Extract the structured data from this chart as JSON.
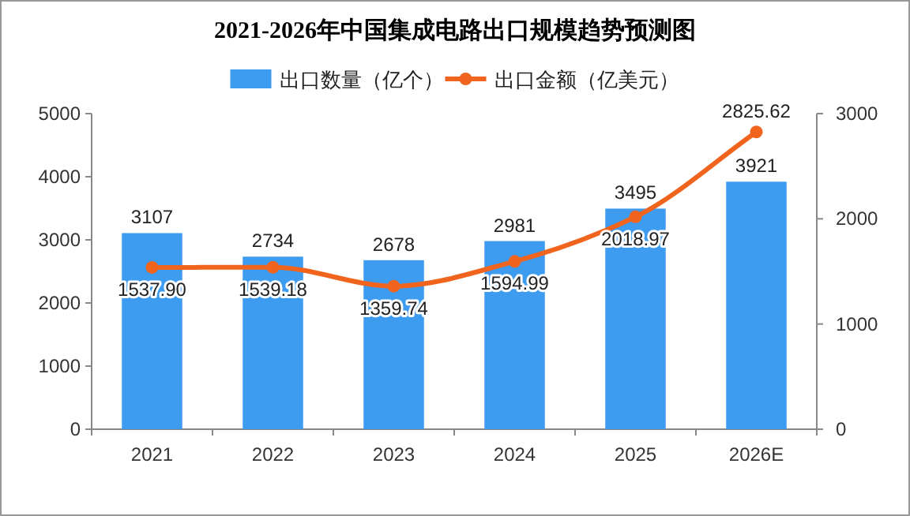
{
  "chart_data": {
    "type": "bar",
    "title": "2021-2026年中国集成电路出口规模趋势预测图",
    "categories": [
      "2021",
      "2022",
      "2023",
      "2024",
      "2025",
      "2026E"
    ],
    "series": [
      {
        "name": "出口数量（亿个）",
        "color": "#3d9cf0",
        "values": [
          3107,
          2734,
          2678,
          2981,
          3495,
          3921
        ],
        "value_labels": [
          "3107",
          "2734",
          "2678",
          "2981",
          "3495",
          "3921"
        ]
      },
      {
        "name": "出口金额（亿美元）",
        "type": "line",
        "axis": "y2",
        "marker": "circle",
        "color": "#f0641e",
        "values": [
          1537.9,
          1539.18,
          1359.74,
          1594.99,
          2018.97,
          2825.62
        ],
        "value_labels": [
          "1537.90",
          "1539.18",
          "1359.74",
          "1594.99",
          "2018.97",
          "2825.62"
        ]
      }
    ],
    "ylim": [
      0,
      5000
    ],
    "yticks": [
      0,
      1000,
      2000,
      3000,
      4000,
      5000
    ],
    "y2lim": [
      0,
      3000
    ],
    "y2ticks": [
      0,
      1000,
      2000,
      3000
    ],
    "legend": "top"
  }
}
